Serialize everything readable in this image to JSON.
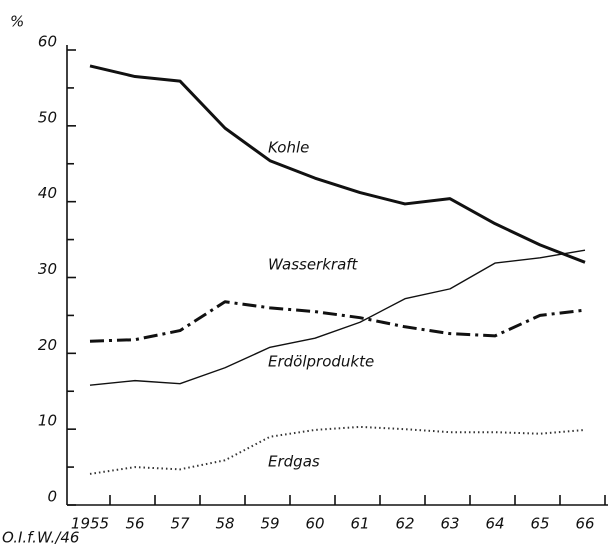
{
  "chart_data": {
    "type": "line",
    "y_label": "%",
    "footnote": "O.I.f.W./46",
    "categories": [
      "1955",
      "56",
      "57",
      "58",
      "59",
      "60",
      "61",
      "62",
      "63",
      "64",
      "65",
      "66"
    ],
    "ylim": [
      0,
      60
    ],
    "yticks": [
      0,
      10,
      20,
      30,
      40,
      50,
      60
    ],
    "yminor_ticks": [
      5,
      15,
      25,
      35,
      45,
      55
    ],
    "series": [
      {
        "name": "Kohle",
        "color": "#111111",
        "style": "solid",
        "width": 3,
        "values": [
          57.9,
          56.5,
          55.9,
          49.7,
          45.4,
          43.1,
          41.2,
          39.7,
          40.4,
          37.1,
          34.3,
          32
        ]
      },
      {
        "name": "Wasserkraft",
        "color": "#111111",
        "style": "dashdot",
        "width": 3,
        "values": [
          21.6,
          21.8,
          23,
          26.8,
          26,
          25.5,
          24.7,
          23.5,
          22.6,
          22.3,
          25,
          25.7
        ]
      },
      {
        "name": "Erdölprodukte",
        "color": "#111111",
        "style": "solid",
        "width": 1.4,
        "values": [
          15.8,
          16.4,
          16,
          18.1,
          20.8,
          22,
          24.1,
          27.2,
          28.5,
          31.9,
          32.6,
          33.6
        ]
      },
      {
        "name": "Erdgas",
        "color": "#333333",
        "style": "dotted",
        "width": 2,
        "values": [
          4.1,
          5,
          4.7,
          5.9,
          9,
          9.9,
          10.3,
          10,
          9.6,
          9.6,
          9.4,
          9.9
        ]
      }
    ]
  }
}
